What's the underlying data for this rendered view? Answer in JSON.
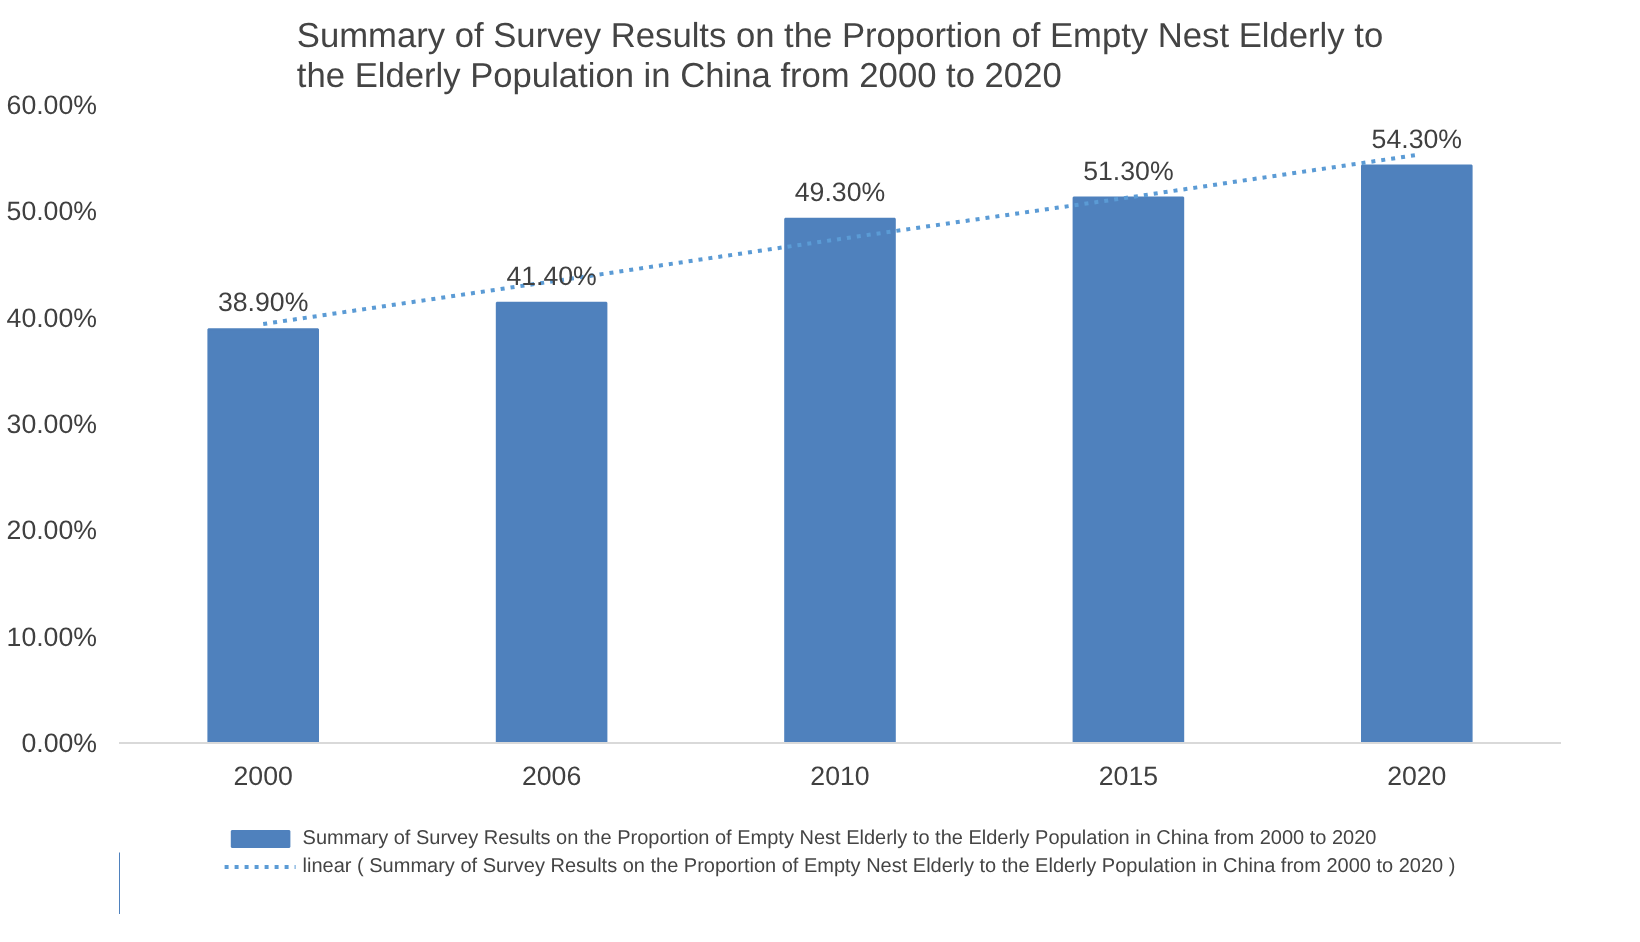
{
  "chart_data": {
    "type": "bar",
    "title": "Summary of Survey Results on the Proportion of Empty Nest Elderly to the Elderly Population in China from 2000 to 2020",
    "categories": [
      "2000",
      "2006",
      "2010",
      "2015",
      "2020"
    ],
    "series": [
      {
        "name": "Summary of Survey Results on the Proportion of Empty Nest Elderly to the Elderly Population in China from 2000 to 2020",
        "color": "#4f81bd",
        "values": [
          38.9,
          41.4,
          49.3,
          51.3,
          54.3
        ],
        "value_labels": [
          "38.90%",
          "41.40%",
          "49.30%",
          "51.30%",
          "54.30%"
        ]
      },
      {
        "type": "line",
        "name": "linear ( Summary of Survey Results on the Proportion of Empty Nest Elderly to the Elderly Population in China from 2000 to 2020 )",
        "color": "#5b9bd5",
        "line_style": "dotted",
        "values": [
          39.4,
          43.4,
          47.4,
          51.3,
          55.3
        ]
      }
    ],
    "ylim": [
      0,
      60
    ],
    "yticks": [
      {
        "value": 0,
        "label": "0.00%"
      },
      {
        "value": 10,
        "label": "10.00%"
      },
      {
        "value": 20,
        "label": "20.00%"
      },
      {
        "value": 30,
        "label": "30.00%"
      },
      {
        "value": 40,
        "label": "40.00%"
      },
      {
        "value": 50,
        "label": "50.00%"
      },
      {
        "value": 60,
        "label": "60.00%"
      }
    ],
    "grid": false,
    "legend": "bottom"
  }
}
